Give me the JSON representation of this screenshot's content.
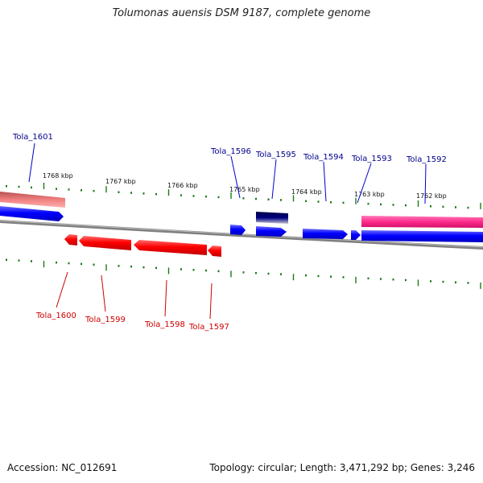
{
  "header": {
    "title": "Tolumonas auensis DSM 9187, complete genome"
  },
  "footer": {
    "accession": "Accession: NC_012691",
    "summary": "Topology: circular; Length: 3,471,292 bp; Genes: 3,246"
  },
  "scale_ticks": [
    "1768 kbp",
    "1767 kbp",
    "1766 kbp",
    "1765 kbp",
    "1764 kbp",
    "1763 kbp",
    "1762 kbp"
  ],
  "genes_forward": [
    "Tola_1601",
    "Tola_1596",
    "Tola_1595",
    "Tola_1594",
    "Tola_1593",
    "Tola_1592"
  ],
  "genes_reverse": [
    "Tola_1600",
    "Tola_1599",
    "Tola_1598",
    "Tola_1597"
  ],
  "colors": {
    "forward_gene": "#0000ff",
    "reverse_gene": "#ff0000",
    "forward_label": "#00008b",
    "reverse_label": "#cc0000",
    "pink_feature": "#ff2a8c",
    "salmon_feature": "#f08080",
    "navy_feature": "#000066",
    "tick": "#1a7a1a",
    "backbone": "#808080"
  }
}
